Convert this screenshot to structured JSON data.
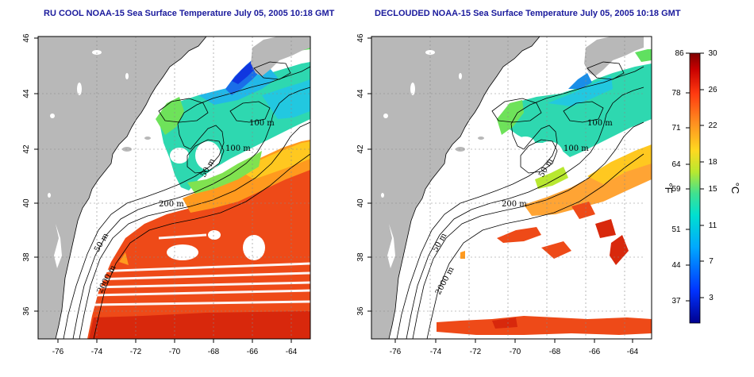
{
  "left_panel": {
    "title": "RU COOL NOAA-15 Sea Surface Temperature July 05, 2005 10:18 GMT"
  },
  "right_panel": {
    "title": "DECLOUDED NOAA-15 Sea Surface Temperature July 05, 2005 10:18 GMT"
  },
  "map_axes": {
    "lon_ticks": [
      "-76",
      "-74",
      "-72",
      "-70",
      "-68",
      "-66",
      "-64"
    ],
    "lat_ticks": [
      "36",
      "38",
      "40",
      "42",
      "44",
      "46"
    ]
  },
  "contour_labels": [
    "100 m",
    "100 m",
    "50 m",
    "200 m",
    "50 m",
    "2000 m"
  ],
  "colorbar": {
    "f_label": "°F",
    "c_label": "°C",
    "f_ticks": [
      "86",
      "78",
      "71",
      "64",
      "59",
      "51",
      "44",
      "37"
    ],
    "c_ticks": [
      "30",
      "26",
      "22",
      "18",
      "15",
      "11",
      "7",
      "3"
    ],
    "colors": [
      "#00008f",
      "#0033ff",
      "#00a8ff",
      "#00e0d0",
      "#40e090",
      "#b8e830",
      "#ffd820",
      "#ff9020",
      "#ff3a10",
      "#c80000",
      "#7f0000"
    ]
  },
  "colors": {
    "land": "#b8b8b8",
    "water_nodata": "#ffffff",
    "title": "#1a1a9c"
  }
}
